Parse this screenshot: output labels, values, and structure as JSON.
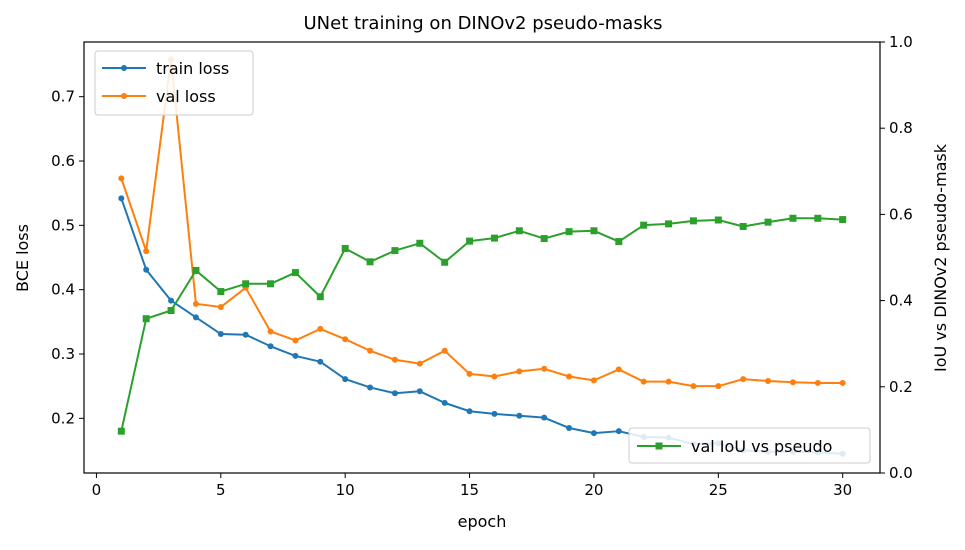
{
  "chart_data": {
    "type": "line",
    "title": "UNet training on DINOv2 pseudo-masks",
    "xlabel": "epoch",
    "ylabel_left": "BCE loss",
    "ylabel_right": "IoU vs DINOv2 pseudo-mask",
    "xlim": [
      -0.5,
      31.5
    ],
    "ylim_left": [
      0.115,
      0.785
    ],
    "ylim_right": [
      0.0,
      1.0
    ],
    "x_ticks": [
      0,
      5,
      10,
      15,
      20,
      25,
      30
    ],
    "y_left_ticks": [
      0.2,
      0.3,
      0.4,
      0.5,
      0.6,
      0.7
    ],
    "y_right_ticks": [
      0.0,
      0.2,
      0.4,
      0.6,
      0.8,
      1.0
    ],
    "grid": false,
    "legend_left_placement": "upper left",
    "legend_right_placement": "lower right",
    "x": [
      1,
      2,
      3,
      4,
      5,
      6,
      7,
      8,
      9,
      10,
      11,
      12,
      13,
      14,
      15,
      16,
      17,
      18,
      19,
      20,
      21,
      22,
      23,
      24,
      25,
      26,
      27,
      28,
      29,
      30
    ],
    "series": [
      {
        "name": "train loss",
        "axis": "left",
        "color": "#1f77b4",
        "marker": "circle",
        "values": [
          0.542,
          0.431,
          0.383,
          0.357,
          0.331,
          0.33,
          0.312,
          0.297,
          0.288,
          0.261,
          0.248,
          0.239,
          0.242,
          0.224,
          0.211,
          0.207,
          0.204,
          0.201,
          0.185,
          0.177,
          0.18,
          0.171,
          0.17,
          0.16,
          0.161,
          0.15,
          0.148,
          0.148,
          0.147,
          0.145
        ]
      },
      {
        "name": "val loss",
        "axis": "left",
        "color": "#ff7f0e",
        "marker": "circle",
        "values": [
          0.573,
          0.46,
          0.758,
          0.378,
          0.373,
          0.403,
          0.335,
          0.321,
          0.339,
          0.323,
          0.305,
          0.291,
          0.285,
          0.305,
          0.269,
          0.265,
          0.273,
          0.277,
          0.265,
          0.259,
          0.276,
          0.257,
          0.257,
          0.25,
          0.25,
          0.261,
          0.258,
          0.256,
          0.255,
          0.255
        ]
      },
      {
        "name": "val IoU vs pseudo",
        "axis": "right",
        "color": "#2ca02c",
        "marker": "square",
        "values": [
          0.097,
          0.358,
          0.377,
          0.47,
          0.421,
          0.439,
          0.439,
          0.465,
          0.409,
          0.521,
          0.49,
          0.516,
          0.533,
          0.489,
          0.538,
          0.545,
          0.562,
          0.544,
          0.56,
          0.562,
          0.537,
          0.575,
          0.578,
          0.585,
          0.587,
          0.572,
          0.582,
          0.591,
          0.591,
          0.588
        ]
      }
    ]
  }
}
